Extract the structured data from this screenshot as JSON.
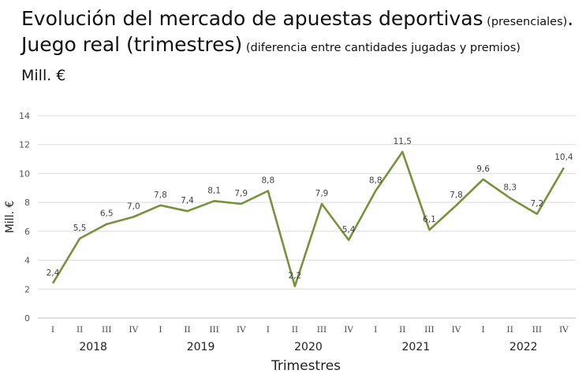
{
  "title": {
    "line1_main": "Evolución del mercado de apuestas deportivas",
    "line1_small": " (presenciales)",
    "line1_end": ".",
    "line2_main": "Juego real",
    "line2_paren": " (trimestres)",
    "line2_small": " (diferencia entre cantidades jugadas y premios)"
  },
  "unit_label": "Mill. €",
  "chart_data": {
    "type": "line",
    "xlabel": "Trimestres",
    "ylabel": "Mill. €",
    "ylim": [
      0,
      14
    ],
    "yticks": [
      0,
      2,
      4,
      6,
      8,
      10,
      12,
      14
    ],
    "grid": true,
    "line_color": "#76923c",
    "x": [
      "I",
      "II",
      "III",
      "IV",
      "I",
      "II",
      "III",
      "IV",
      "I",
      "II",
      "III",
      "IV",
      "I",
      "II",
      "III",
      "IV",
      "I",
      "II",
      "III",
      "IV"
    ],
    "years": [
      "2018",
      "2019",
      "2020",
      "2021",
      "2022"
    ],
    "values": [
      2.4,
      5.5,
      6.5,
      7.0,
      7.8,
      7.4,
      8.1,
      7.9,
      8.8,
      2.2,
      7.9,
      5.4,
      8.8,
      11.5,
      6.1,
      7.8,
      9.6,
      8.3,
      7.2,
      10.4
    ],
    "data_labels": [
      "2,4",
      "5,5",
      "6,5",
      "7,0",
      "7,8",
      "7,4",
      "8,1",
      "7,9",
      "8,8",
      "2,2",
      "7,9",
      "5,4",
      "8,8",
      "11,5",
      "6,1",
      "7,8",
      "9,6",
      "8,3",
      "7,2",
      "10,4"
    ],
    "ytick_labels": [
      "0",
      "2",
      "4",
      "6",
      "8",
      "10",
      "12",
      "14"
    ]
  }
}
